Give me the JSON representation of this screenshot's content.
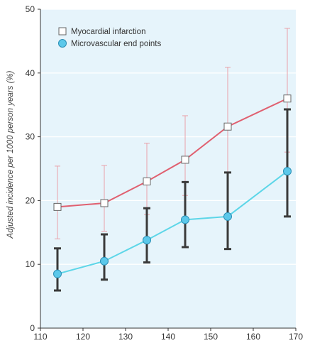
{
  "chart_data": {
    "type": "line",
    "title": "",
    "xlabel": "",
    "ylabel": "Adjusted incidence per 1000 person years (%)",
    "xlim": [
      110,
      170
    ],
    "ylim": [
      0,
      50
    ],
    "xticks": [
      110,
      120,
      130,
      140,
      150,
      160,
      170
    ],
    "yticks": [
      0,
      10,
      20,
      30,
      40,
      50
    ],
    "grid": "horizontal",
    "legend_position": "top-left",
    "background": "#e6f4fb",
    "series": [
      {
        "name": "Myocardial infarction",
        "marker": "square-open",
        "line_color": "#e06070",
        "errorbar_color": "#e9a0a8",
        "points": [
          {
            "x": 114,
            "y": 19.0,
            "lo": 14.0,
            "hi": 25.4
          },
          {
            "x": 125,
            "y": 19.6,
            "lo": 15.2,
            "hi": 25.5
          },
          {
            "x": 135,
            "y": 23.0,
            "lo": 17.8,
            "hi": 29.0
          },
          {
            "x": 144,
            "y": 26.4,
            "lo": 20.8,
            "hi": 33.3
          },
          {
            "x": 154,
            "y": 31.6,
            "lo": 24.4,
            "hi": 40.9
          },
          {
            "x": 168,
            "y": 36.0,
            "lo": 27.6,
            "hi": 47.0
          }
        ]
      },
      {
        "name": "Microvascular end points",
        "marker": "circle-filled",
        "line_color": "#5dd6e8",
        "marker_fill": "#5bc8ea",
        "errorbar_color": "#3a3a3a",
        "points": [
          {
            "x": 114,
            "y": 8.5,
            "lo": 5.9,
            "hi": 12.5
          },
          {
            "x": 125,
            "y": 10.5,
            "lo": 7.6,
            "hi": 14.7
          },
          {
            "x": 135,
            "y": 13.8,
            "lo": 10.3,
            "hi": 18.8
          },
          {
            "x": 144,
            "y": 17.0,
            "lo": 12.7,
            "hi": 22.9
          },
          {
            "x": 154,
            "y": 17.5,
            "lo": 12.4,
            "hi": 24.4
          },
          {
            "x": 168,
            "y": 24.6,
            "lo": 17.5,
            "hi": 34.3
          }
        ]
      }
    ]
  }
}
